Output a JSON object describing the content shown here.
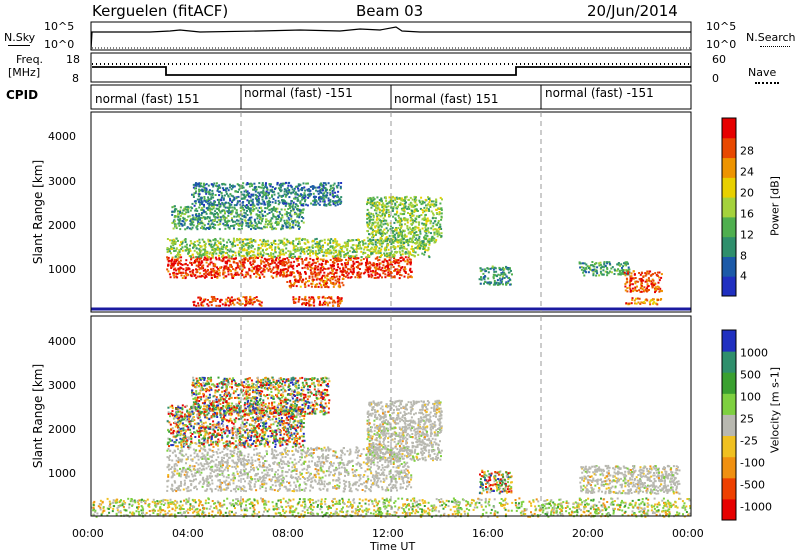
{
  "header": {
    "radar": "Kerguelen (fitACF)",
    "beam": "Beam 03",
    "date": "20/Jun/2014"
  },
  "summary_panel": {
    "nsky_label": "N.Sky",
    "nsky_ticks": [
      "10^5",
      "10^0"
    ],
    "nsearch_label": "N.Search",
    "nsearch_ticks": [
      "10^5",
      "10^0"
    ],
    "freq_label": "Freq.",
    "freq_unit": "[MHz]",
    "freq_ticks": [
      "18",
      "8"
    ],
    "nave_label": "Nave",
    "nave_ticks": [
      "60",
      "0"
    ],
    "cpid_label": "CPID",
    "cpid_segments": [
      "normal (fast) 151",
      "normal (fast) -151",
      "normal (fast) 151",
      "normal (fast) -151"
    ]
  },
  "chart_data": [
    {
      "type": "heatmap",
      "panel": "power",
      "ylabel": "Slant Range [km]",
      "yticks": [
        "1000",
        "2000",
        "3000",
        "4000"
      ],
      "ylim": [
        300,
        4600
      ],
      "xlim": [
        0,
        24
      ],
      "colorbar": {
        "label": "Power [dB]",
        "ticks": [
          "4",
          "8",
          "12",
          "16",
          "20",
          "24",
          "28"
        ],
        "range": [
          0,
          30
        ],
        "colors": [
          "#2030c0",
          "#1c5aa8",
          "#2f8f6c",
          "#4faf4f",
          "#a4d23c",
          "#e8d000",
          "#ee9400",
          "#e84800",
          "#e60000"
        ]
      },
      "regions": [
        {
          "t": [
            3.0,
            12.8
          ],
          "r": [
            1050,
            1500
          ],
          "level": 27
        },
        {
          "t": [
            7.8,
            10.2
          ],
          "r": [
            850,
            1050
          ],
          "level": 24
        },
        {
          "t": [
            4.0,
            6.8
          ],
          "r": [
            450,
            650
          ],
          "level": 26
        },
        {
          "t": [
            8.0,
            10.0
          ],
          "r": [
            450,
            650
          ],
          "level": 26
        },
        {
          "t": [
            3.0,
            13.5
          ],
          "r": [
            1500,
            1900
          ],
          "level": 14
        },
        {
          "t": [
            3.2,
            8.5
          ],
          "r": [
            2100,
            2600
          ],
          "level": 10
        },
        {
          "t": [
            4.0,
            10.0
          ],
          "r": [
            2600,
            3100
          ],
          "level": 7
        },
        {
          "t": [
            11.0,
            14.0
          ],
          "r": [
            1800,
            2800
          ],
          "level": 13
        },
        {
          "t": [
            15.5,
            16.8
          ],
          "r": [
            900,
            1300
          ],
          "level": 9
        },
        {
          "t": [
            19.5,
            21.5
          ],
          "r": [
            1100,
            1400
          ],
          "level": 10
        },
        {
          "t": [
            21.3,
            22.8
          ],
          "r": [
            750,
            1200
          ],
          "level": 25
        },
        {
          "t": [
            21.3,
            22.8
          ],
          "r": [
            480,
            620
          ],
          "level": 22
        }
      ]
    },
    {
      "type": "heatmap",
      "panel": "velocity",
      "ylabel": "Slant Range [km]",
      "yticks": [
        "1000",
        "2000",
        "3000",
        "4000"
      ],
      "ylim": [
        300,
        4600
      ],
      "xlim": [
        0,
        24
      ],
      "xlabel": "Time UT",
      "xticks": [
        "00:00",
        "04:00",
        "08:00",
        "12:00",
        "16:00",
        "20:00",
        "00:00"
      ],
      "colorbar": {
        "label": "Velocity [m s-1]",
        "ticks": [
          "1000",
          "500",
          "100",
          "25",
          "-25",
          "-100",
          "-500",
          "-1000"
        ],
        "colors": [
          "#2030c0",
          "#2f8f6c",
          "#3aa030",
          "#7ed040",
          "#b8b8b0",
          "#f0c020",
          "#f09010",
          "#ee4000",
          "#e60000"
        ]
      },
      "regions": [
        {
          "t": [
            3.0,
            12.8
          ],
          "r": [
            850,
            1800
          ],
          "kind": "gray"
        },
        {
          "t": [
            3.0,
            8.5
          ],
          "r": [
            1800,
            2700
          ],
          "kind": "mixed"
        },
        {
          "t": [
            4.0,
            9.5
          ],
          "r": [
            2500,
            3300
          ],
          "kind": "mixed"
        },
        {
          "t": [
            11.0,
            14.0
          ],
          "r": [
            1500,
            2800
          ],
          "kind": "gray"
        },
        {
          "t": [
            15.5,
            16.8
          ],
          "r": [
            800,
            1300
          ],
          "kind": "mixed"
        },
        {
          "t": [
            19.5,
            23.5
          ],
          "r": [
            800,
            1400
          ],
          "kind": "gray"
        },
        {
          "t": [
            0.0,
            24.0
          ],
          "r": [
            300,
            700
          ],
          "kind": "noise"
        }
      ]
    }
  ]
}
